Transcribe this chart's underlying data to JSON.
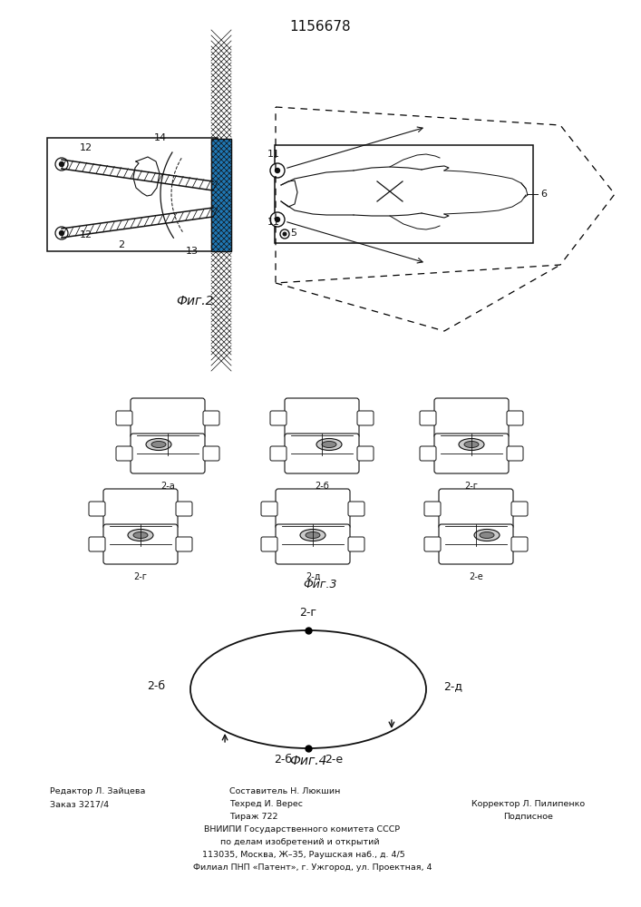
{
  "title": "1156678",
  "bg_color": "#ffffff",
  "fig2_label": "Фиг.2",
  "fig3_label": "Фиг.3",
  "fig4_label": "Фиг.4",
  "vertebra_row1_labels": [
    "2-а",
    "2-б",
    "2-г"
  ],
  "vertebra_row2_labels": [
    "2-г",
    "2-д",
    "2-е"
  ],
  "cycle_top_label": "2-г",
  "cycle_left_label": "2-б",
  "cycle_right_label": "2-д",
  "cycle_bot_left": "2-б",
  "cycle_bot_right": "2-е",
  "footer_left1": "Редактор Л. Зайцева",
  "footer_left2": "Заказ 3217/4",
  "footer_c1": "Составитель Н. Люкшин",
  "footer_c2": "Техред И. Верес",
  "footer_c3": "Тираж 722",
  "footer_c4": "ВНИИПИ Государственного комитета СССР",
  "footer_c5": "по делам изобретений и открытий",
  "footer_c6": "113035, Москва, Ж–35, Раушская наб., д. 4/5",
  "footer_c7": "Филиал ПНП «Патент», г. Ужгород, ул. Проектная, 4",
  "footer_r1": "Корректор Л. Пилипенко",
  "footer_r2": "Подписное"
}
